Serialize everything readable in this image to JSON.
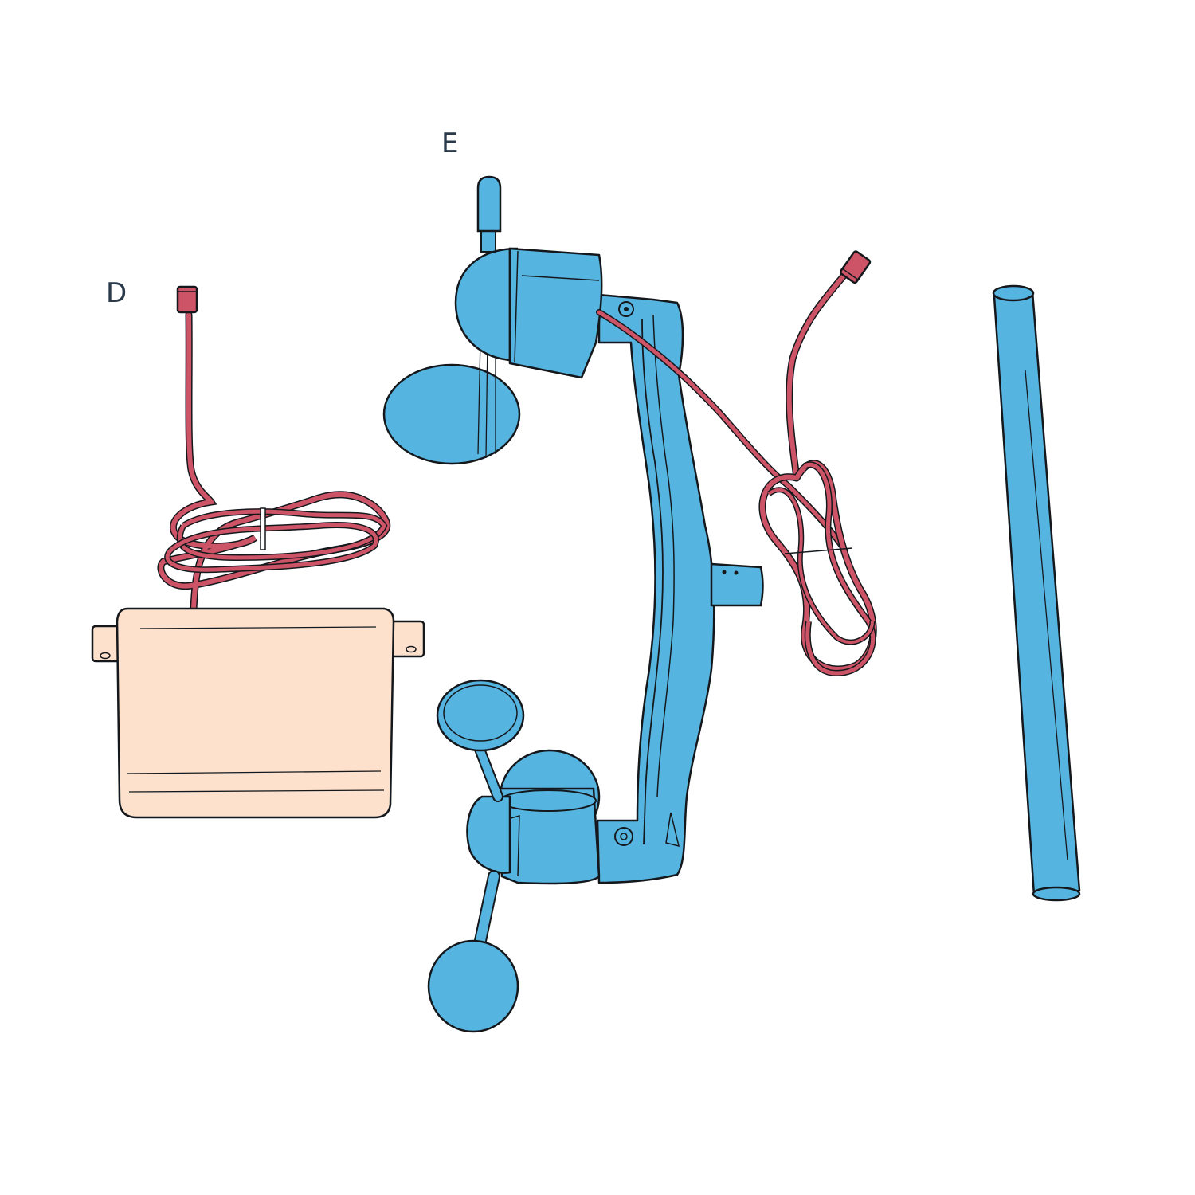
{
  "labels": {
    "d": "D",
    "e": "E"
  },
  "colors": {
    "blue": "#56b4e0",
    "red": "#cc5466",
    "peach": "#fde1cd",
    "outline": "#14181c",
    "label": "#2b3a4a"
  },
  "parts": [
    {
      "id": "D",
      "name": "console-box-with-cable"
    },
    {
      "id": "E",
      "name": "anemometer-wind-vane-assembly"
    },
    {
      "id": "",
      "name": "mounting-pole"
    }
  ]
}
